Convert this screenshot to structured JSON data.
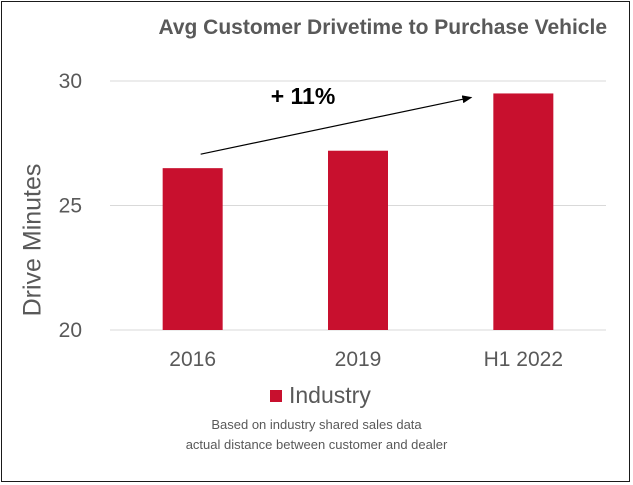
{
  "chart_data": {
    "type": "bar",
    "title": "Avg Customer Drivetime to Purchase Vehicle",
    "ylabel": "Drive Minutes",
    "xlabel": "",
    "categories": [
      "2016",
      "2019",
      "H1 2022"
    ],
    "series": [
      {
        "name": "Industry",
        "values": [
          26.5,
          27.2,
          29.5
        ],
        "color": "#c8102e"
      }
    ],
    "ylim": [
      20,
      30
    ],
    "yticks": [
      20,
      25,
      30
    ],
    "grid": true,
    "legend_position": "bottom",
    "annotation": {
      "text": "+ 11%",
      "from": "2016",
      "to": "H1 2022"
    }
  },
  "notes": [
    "Based on industry shared sales data",
    "actual distance between customer and dealer"
  ],
  "colors": {
    "bar": "#c8102e",
    "text": "#595959",
    "grid": "#d9d9d9"
  }
}
